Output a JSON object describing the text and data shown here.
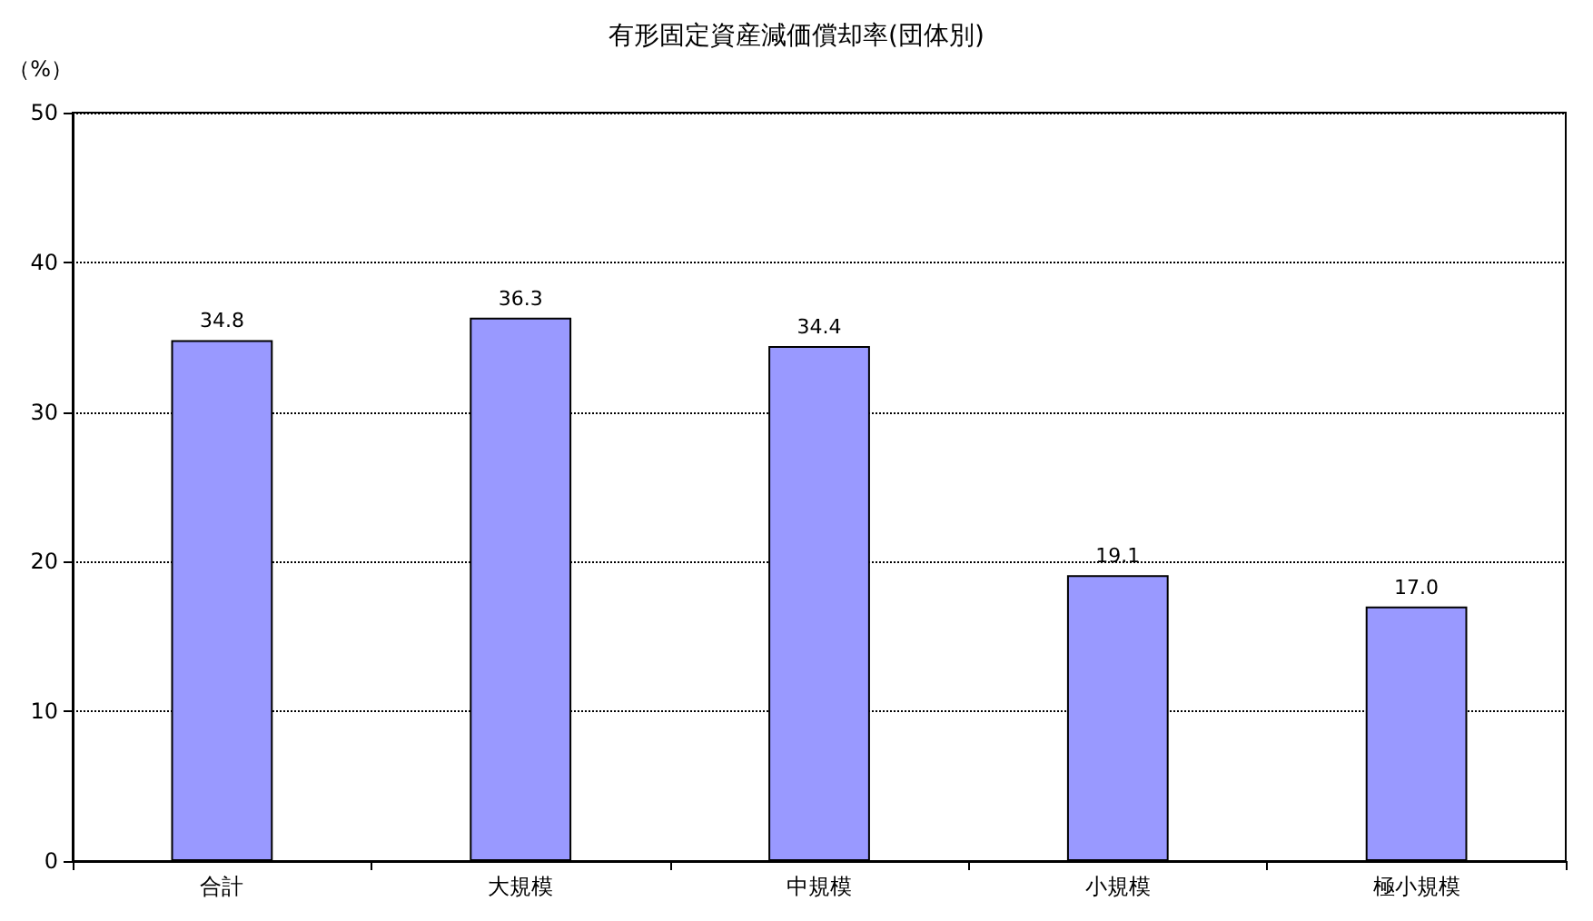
{
  "chart_data": {
    "type": "bar",
    "title": "有形固定資産減価償却率(団体別)",
    "ylabel": "（%）",
    "categories": [
      "合計",
      "大規模",
      "中規模",
      "小規模",
      "極小規模"
    ],
    "values": [
      34.8,
      36.3,
      34.4,
      19.1,
      17.0
    ],
    "value_labels": [
      "34.8",
      "36.3",
      "34.4",
      "19.1",
      "17.0"
    ],
    "color": "#9999ff",
    "ylim": [
      0,
      50
    ],
    "yticks": [
      0,
      10,
      20,
      30,
      40,
      50
    ],
    "grid": "y"
  }
}
